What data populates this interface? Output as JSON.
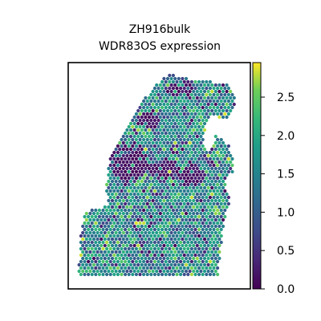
{
  "chart_data": {
    "type": "scatter",
    "title_line1": "ZH916bulk",
    "title_line2": "WDR83OS expression",
    "xlabel": "",
    "ylabel": "",
    "colormap": "viridis",
    "grid": false,
    "colorbar": {
      "min": 0.0,
      "max": 2.95,
      "ticks": [
        0.0,
        0.5,
        1.0,
        1.5,
        2.0,
        2.5
      ],
      "tick_labels": [
        "0.0",
        "0.5",
        "1.0",
        "1.5",
        "2.0",
        "2.5"
      ]
    },
    "spot_value_range": [
      0.0,
      2.95
    ],
    "spot_mean_value": 1.5
  }
}
